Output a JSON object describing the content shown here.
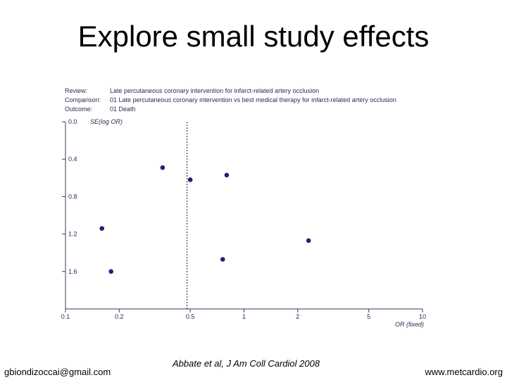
{
  "slide": {
    "title": "Explore small study effects",
    "footer_left": "gbiondizoccai@gmail.com",
    "footer_citation": "Abbate et al, J Am Coll Cardiol 2008",
    "footer_right": "www.metcardio.org"
  },
  "review_info": {
    "review_label": "Review:",
    "review_value": "Late percutaneous coronary intervention for infarct-related artery occlusion",
    "comparison_label": "Comparison:",
    "comparison_value": "01 Late percutaneous coronary intervention vs best medical therapy for infarct-related artery occlusion",
    "outcome_label": "Outcome:",
    "outcome_value": "01 Death"
  },
  "chart_data": {
    "type": "scatter",
    "title": "",
    "xlabel": "OR (fixed)",
    "ylabel": "SE(log OR)",
    "x_scale": "log",
    "xlim": [
      0.1,
      10
    ],
    "x_ticks": [
      0.1,
      0.2,
      0.5,
      1,
      2,
      5,
      10
    ],
    "x_tick_labels": [
      "0.1",
      "0.2",
      "0.5",
      "1",
      "2",
      "5",
      "10"
    ],
    "ylim": [
      0.0,
      2.0
    ],
    "y_inverted": true,
    "y_ticks": [
      0.0,
      0.4,
      0.8,
      1.2,
      1.6
    ],
    "y_tick_labels": [
      "0.0",
      "0.4",
      "0.8",
      "1.2",
      "1.6"
    ],
    "pooled_or": 0.48,
    "points": [
      {
        "or": 0.35,
        "se": 0.49
      },
      {
        "or": 0.5,
        "se": 0.62
      },
      {
        "or": 0.8,
        "se": 0.57
      },
      {
        "or": 0.16,
        "se": 1.14
      },
      {
        "or": 2.3,
        "se": 1.27
      },
      {
        "or": 0.76,
        "se": 1.47
      },
      {
        "or": 0.18,
        "se": 1.6
      }
    ],
    "grid": false,
    "marker_color": "#1a237e"
  }
}
